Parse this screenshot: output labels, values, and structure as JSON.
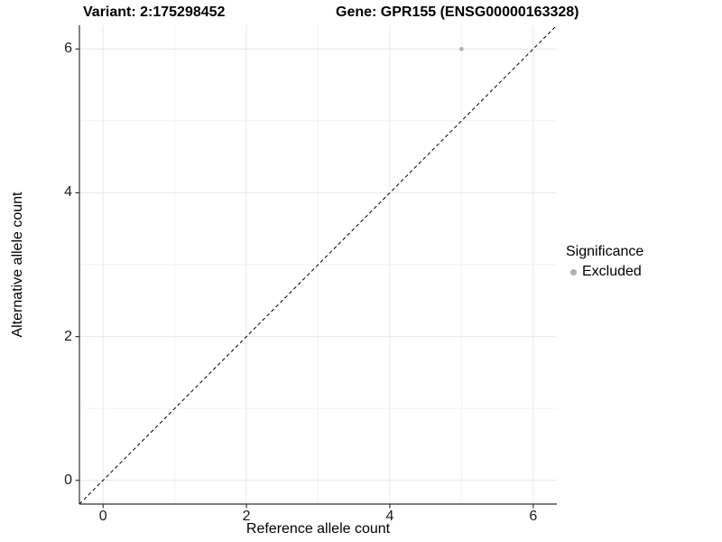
{
  "titles": {
    "variant": "Variant: 2:175298452",
    "gene": "Gene: GPR155 (ENSG00000163328)"
  },
  "axes": {
    "x": {
      "label": "Reference allele count",
      "tick_labels": [
        "0",
        "2",
        "4",
        "6"
      ]
    },
    "y": {
      "label": "Alternative allele count",
      "tick_labels": [
        "0",
        "2",
        "4",
        "6"
      ]
    }
  },
  "legend": {
    "title": "Significance",
    "items": [
      {
        "label": "Excluded",
        "color": "#b0b0b0"
      }
    ]
  },
  "colors": {
    "background": "#ffffff",
    "grid_major": "#e8e8e8",
    "grid_minor": "#f2f2f2",
    "axis_line": "#333333",
    "tick_mark": "#333333",
    "reference_line": "#000000",
    "point": "#b0b0b0",
    "text": "#000000"
  },
  "chart_data": {
    "type": "scatter",
    "title": "Variant: 2:175298452 | Gene: GPR155 (ENSG00000163328)",
    "xlabel": "Reference allele count",
    "ylabel": "Alternative allele count",
    "xlim": [
      -0.33,
      6.33
    ],
    "ylim": [
      -0.33,
      6.33
    ],
    "x_ticks": [
      0,
      2,
      4,
      6
    ],
    "y_ticks": [
      0,
      2,
      4,
      6
    ],
    "x_minor_ticks": [
      1,
      3,
      5
    ],
    "y_minor_ticks": [
      1,
      3,
      5
    ],
    "grid": true,
    "legend_position": "right",
    "series": [
      {
        "name": "Excluded",
        "color": "#b0b0b0",
        "point_radius": 2.3,
        "points": [
          [
            5,
            6
          ]
        ]
      }
    ],
    "reference_line": {
      "type": "identity",
      "slope": 1,
      "intercept": 0,
      "style": "dashed",
      "color": "#000000"
    }
  }
}
